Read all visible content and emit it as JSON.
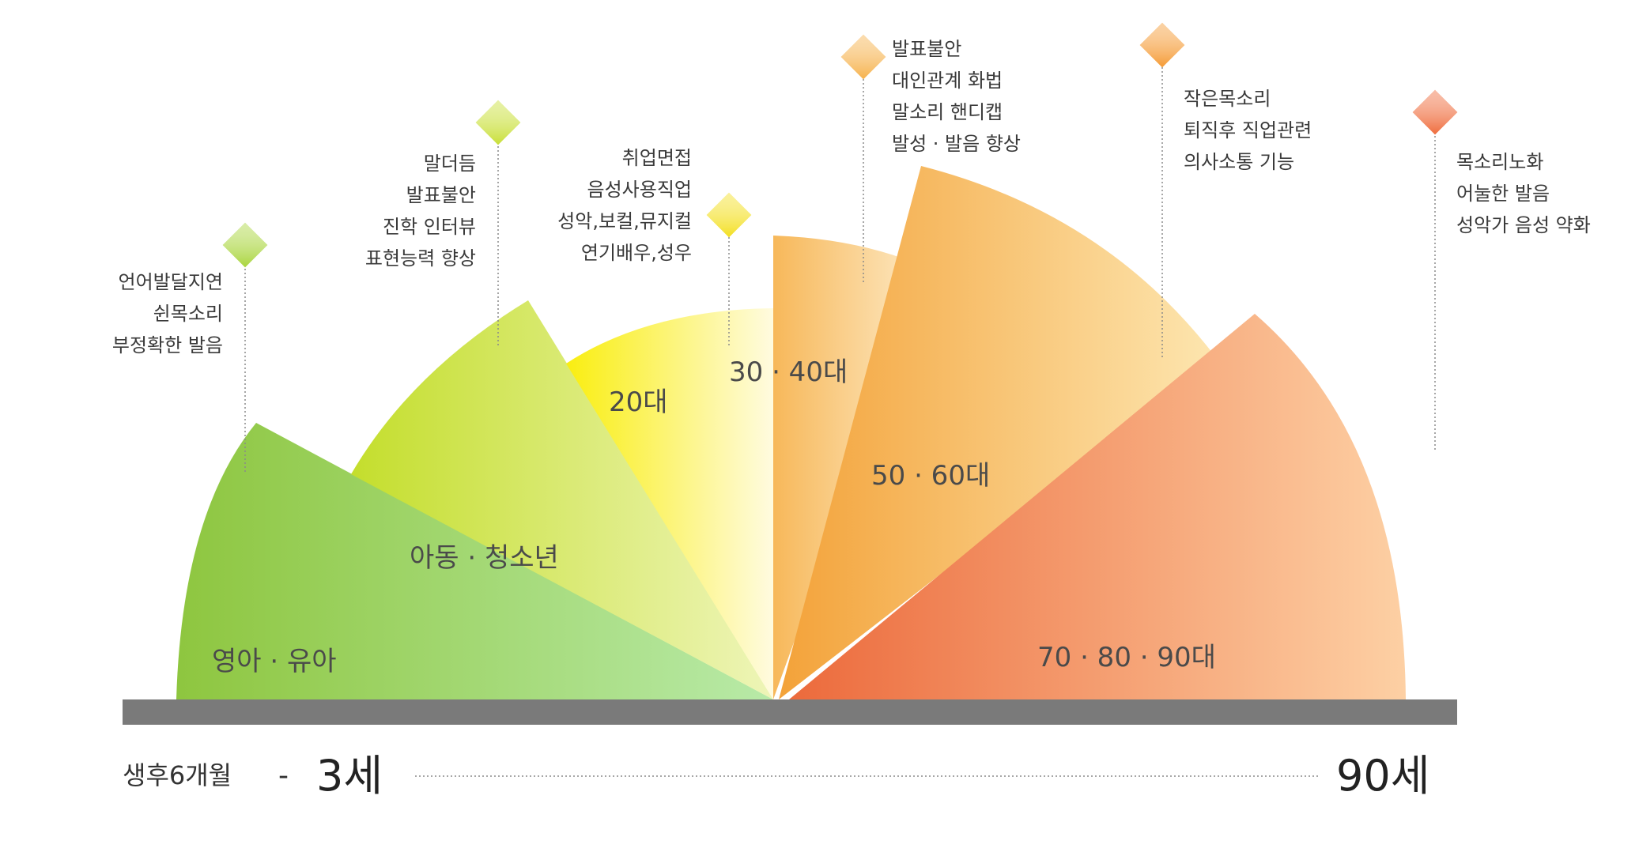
{
  "segments": [
    {
      "id": "infant",
      "label": "영아 · 유아",
      "colors": [
        "#8ec63f",
        "#b8eaa8"
      ]
    },
    {
      "id": "youth",
      "label": "아동 · 청소년",
      "colors": [
        "#c4de2c",
        "#eef5b8"
      ]
    },
    {
      "id": "twenties",
      "label": "20대",
      "colors": [
        "#f9ee10",
        "#fffbe0"
      ]
    },
    {
      "id": "thirties_forties",
      "label": "30 · 40대",
      "colors": [
        "#f7b85a",
        "#fdebc8"
      ]
    },
    {
      "id": "fifties_sixties",
      "label": "50 · 60대",
      "colors": [
        "#f3a239",
        "#fde6b0"
      ]
    },
    {
      "id": "seventies_plus",
      "label": "70 · 80 · 90대",
      "colors": [
        "#ec6a3c",
        "#fdd0a4"
      ]
    }
  ],
  "issues": [
    {
      "marker_color": "#a9d53c",
      "lines": [
        "언어발달지연",
        "쉰목소리",
        "부정확한 발음"
      ]
    },
    {
      "marker_color": "#c8df35",
      "lines": [
        "말더듬",
        "발표불안",
        "진학 인터뷰",
        "표현능력 향상"
      ]
    },
    {
      "marker_color": "#f3df1f",
      "lines": [
        "취업면접",
        "음성사용직업",
        "성악,보컬,뮤지컬",
        "연기배우,성우"
      ]
    },
    {
      "marker_color": "#f6b14a",
      "lines": [
        "발표불안",
        "대인관계 화법",
        "말소리 핸디캡",
        "발성 · 발음 향상"
      ]
    },
    {
      "marker_color": "#f59a33",
      "lines": [
        "작은목소리",
        "퇴직후 직업관련",
        "의사소통 기능"
      ]
    },
    {
      "marker_color": "#ef6b3b",
      "lines": [
        "목소리노화",
        "어눌한 발음",
        "성악가 음성 약화"
      ]
    }
  ],
  "timeline": {
    "start_small": "생후6개월",
    "dash": "-",
    "start_big": "3세",
    "end_big": "90세"
  }
}
